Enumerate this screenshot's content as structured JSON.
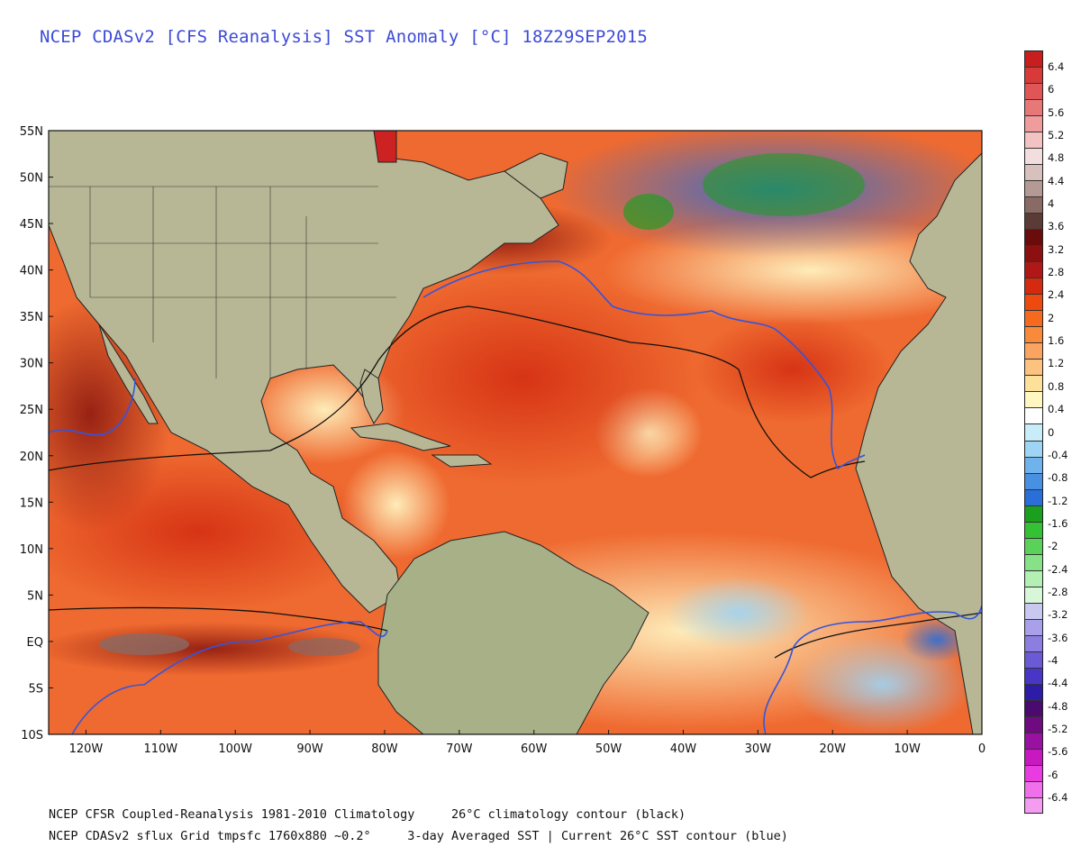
{
  "title": "NCEP CDASv2 [CFS Reanalysis] SST Anomaly [°C] 18Z29SEP2015",
  "footer": {
    "line1": "NCEP CFSR Coupled-Reanalysis 1981-2010 Climatology     26°C climatology contour (black)",
    "line2": "NCEP CDASv2 sflux Grid tmpsfc 1760x880 ~0.2°     3-day Averaged SST | Current 26°C SST contour (blue)"
  },
  "map": {
    "lat_labels": [
      "55N",
      "50N",
      "45N",
      "40N",
      "35N",
      "30N",
      "25N",
      "20N",
      "15N",
      "10N",
      "5N",
      "EQ",
      "5S",
      "10S"
    ],
    "lon_labels": [
      "120W",
      "110W",
      "100W",
      "90W",
      "80W",
      "70W",
      "60W",
      "50W",
      "40W",
      "30W",
      "20W",
      "10W",
      "0"
    ],
    "extent": {
      "lon_min": -125,
      "lon_max": 0,
      "lat_min": -10,
      "lat_max": 55
    },
    "ocean_color": "#e87a48",
    "land_color": "#b8b89a",
    "contour_climatology_color": "#111111",
    "contour_current_color": "#3355dd"
  },
  "colorbar": {
    "ticks": [
      "6.4",
      "6",
      "5.6",
      "5.2",
      "4.8",
      "4.4",
      "4",
      "3.6",
      "3.2",
      "2.8",
      "2.4",
      "2",
      "1.6",
      "1.2",
      "0.8",
      "0.4",
      "0",
      "-0.4",
      "-0.8",
      "-1.2",
      "-1.6",
      "-2",
      "-2.4",
      "-2.8",
      "-3.2",
      "-3.6",
      "-4",
      "-4.4",
      "-4.8",
      "-5.2",
      "-5.6",
      "-6",
      "-6.4"
    ],
    "colors": [
      "#c81e1e",
      "#d83a3a",
      "#e05656",
      "#e87878",
      "#f09c9c",
      "#f3c2c2",
      "#f2dede",
      "#d8c0bc",
      "#b49a94",
      "#8a6a64",
      "#5a3b36",
      "#6a0c0c",
      "#8c1010",
      "#b01818",
      "#d42a10",
      "#ee4a10",
      "#f56a1e",
      "#f88a3a",
      "#fba460",
      "#fcc280",
      "#fde09a",
      "#fff6c0",
      "#ffffff",
      "#c8ecf8",
      "#9ed4f4",
      "#70b2ec",
      "#4890e2",
      "#2a6ed8",
      "#1aa01e",
      "#34c234",
      "#5ad25a",
      "#86e286",
      "#b4efb4",
      "#d8f6d8",
      "#c8c8f0",
      "#a8a0e8",
      "#8c7ee0",
      "#6a5ad6",
      "#4a36c6",
      "#2e1ca8",
      "#4a0a6e",
      "#700a80",
      "#9a10a0",
      "#c818c0",
      "#e83ce0",
      "#f070ec",
      "#f49cf0"
    ]
  }
}
